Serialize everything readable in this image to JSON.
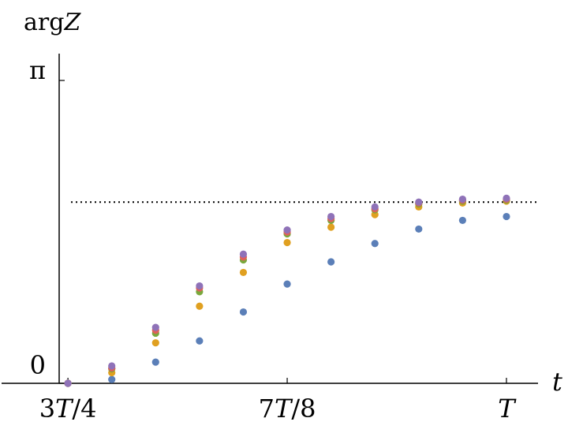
{
  "chart_data": {
    "type": "scatter",
    "xlabel": "t",
    "ylabel": "arg Z",
    "x_tick_labels": [
      "3T/4",
      "7T/8",
      "T"
    ],
    "y_tick_labels": [
      "0",
      "π"
    ],
    "x_ticks": [
      0.75,
      0.875,
      1.0
    ],
    "y_ticks": [
      0,
      3.14159
    ],
    "xlim": [
      0.745,
      1.018
    ],
    "ylim": [
      0,
      3.14159
    ],
    "reference_line": {
      "y": 1.88,
      "style": "dotted",
      "color": "#000000"
    },
    "grid": false,
    "x": [
      0.75,
      0.775,
      0.8,
      0.825,
      0.85,
      0.875,
      0.9,
      0.925,
      0.95,
      0.975,
      1.0
    ],
    "series": [
      {
        "color": "#5b7fb8",
        "values": [
          0.0,
          0.04,
          0.22,
          0.44,
          0.74,
          1.03,
          1.26,
          1.45,
          1.6,
          1.69,
          1.73
        ]
      },
      {
        "color": "#e0a020",
        "values": [
          0.0,
          0.11,
          0.42,
          0.8,
          1.15,
          1.46,
          1.62,
          1.75,
          1.83,
          1.87,
          1.89
        ]
      },
      {
        "color": "#7aa83c",
        "values": [
          0.0,
          0.15,
          0.52,
          0.95,
          1.28,
          1.55,
          1.69,
          1.8,
          1.86,
          1.89,
          1.9
        ]
      },
      {
        "color": "#e0605a",
        "values": [
          0.0,
          0.16,
          0.55,
          0.99,
          1.31,
          1.57,
          1.71,
          1.81,
          1.87,
          1.9,
          1.91
        ]
      },
      {
        "color": "#8f72b8",
        "values": [
          0.0,
          0.18,
          0.58,
          1.01,
          1.34,
          1.59,
          1.73,
          1.83,
          1.88,
          1.91,
          1.92
        ]
      }
    ]
  }
}
